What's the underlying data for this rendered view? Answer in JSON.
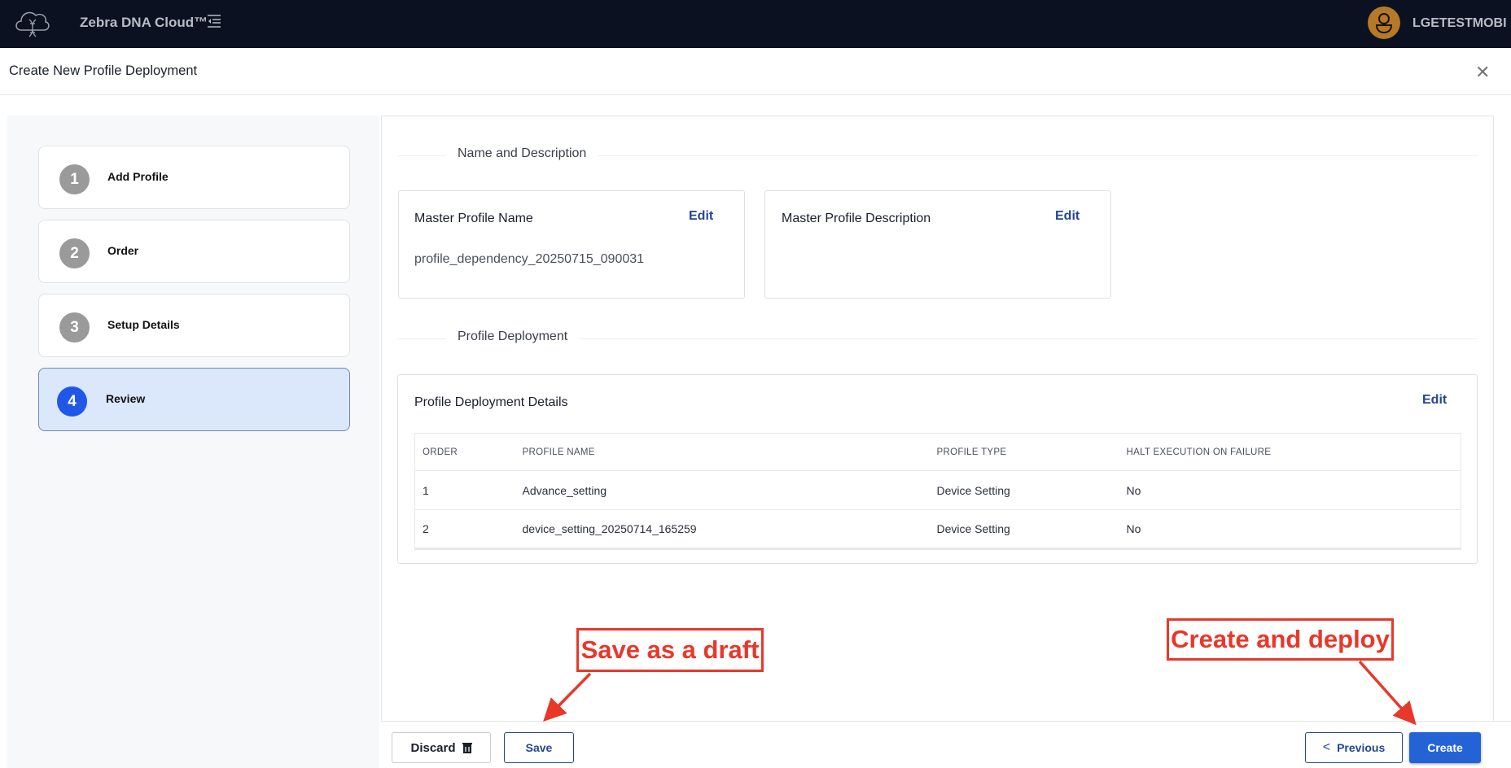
{
  "header": {
    "brand": "Zebra DNA Cloud™",
    "user": "LGETESTMOBI",
    "logo_icon": "cloud-dna-icon",
    "menu_icon": "menu-collapse-icon",
    "avatar_color": "#b5792a"
  },
  "dialog": {
    "title": "Create New Profile Deployment",
    "close_icon": "close-icon"
  },
  "steps": [
    {
      "num": "1",
      "label": "Add Profile"
    },
    {
      "num": "2",
      "label": "Order"
    },
    {
      "num": "3",
      "label": "Setup Details"
    },
    {
      "num": "4",
      "label": "Review",
      "active": true
    }
  ],
  "review": {
    "name_section": "Name and Description",
    "name_card": {
      "title": "Master Profile Name",
      "edit": "Edit",
      "value": "profile_dependency_20250715_090031"
    },
    "desc_card": {
      "title": "Master Profile Description",
      "edit": "Edit"
    },
    "deploy_section": "Profile Deployment",
    "deploy_card": {
      "title": "Profile Deployment Details",
      "edit": "Edit"
    },
    "table": {
      "headers": [
        "ORDER",
        "PROFILE NAME",
        "PROFILE TYPE",
        "HALT EXECUTION ON FAILURE"
      ],
      "rows": [
        [
          "1",
          "Advance_setting",
          "Device Setting",
          "No"
        ],
        [
          "2",
          "device_setting_20250714_165259",
          "Device Setting",
          "No"
        ]
      ]
    }
  },
  "footer": {
    "discard": "Discard",
    "discard_icon": "trash-icon",
    "save": "Save",
    "previous": "Previous",
    "create": "Create"
  },
  "annotations": {
    "save_note": "Save as a draft",
    "create_note": "Create and deploy",
    "color": "#e8382a"
  }
}
